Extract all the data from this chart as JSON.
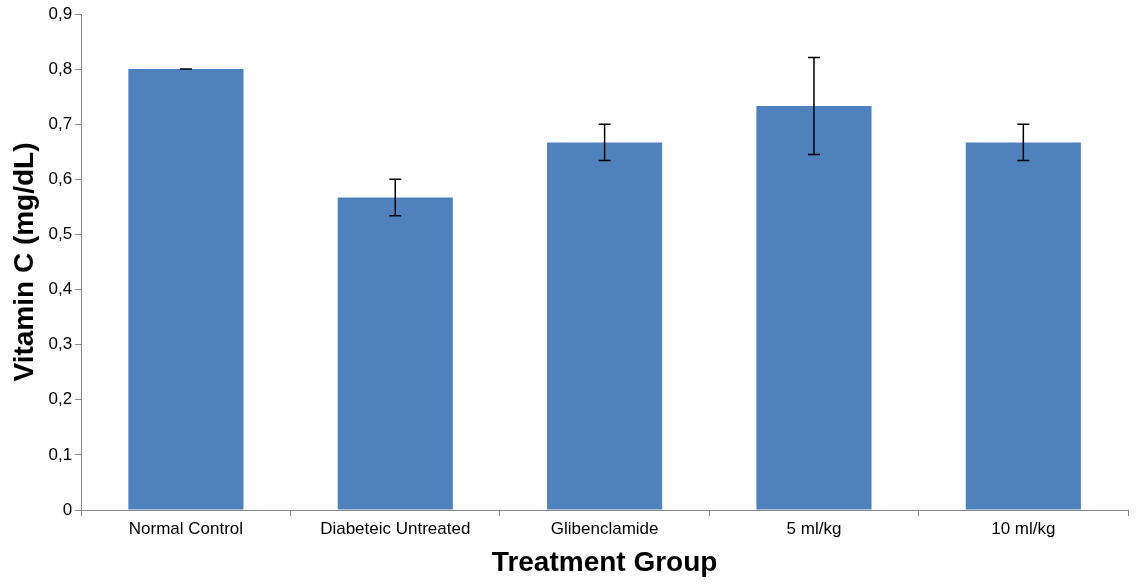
{
  "chart_data": {
    "type": "bar",
    "xlabel": "Treatment Group",
    "ylabel": "Vitamin C (mg/dL)",
    "categories": [
      "Normal Control",
      "Diabeteic Untreated",
      "Glibenclamide",
      "5 ml/kg",
      "10 ml/kg"
    ],
    "values": [
      0.8,
      0.567,
      0.667,
      0.733,
      0.667
    ],
    "errors": [
      0,
      0.033,
      0.033,
      0.088,
      0.033
    ],
    "color": "#4f81bd",
    "ylim": [
      0,
      0.9
    ],
    "yticks": [
      0,
      {
        "value": 0.1,
        "label": "0,1"
      },
      {
        "value": 0.2,
        "label": "0,2"
      },
      {
        "value": 0.3,
        "label": "0,3"
      },
      {
        "value": 0.4,
        "label": "0,4"
      },
      {
        "value": 0.5,
        "label": "0,5"
      },
      {
        "value": 0.6,
        "label": "0,6"
      },
      {
        "value": 0.7,
        "label": "0,7"
      },
      {
        "value": 0.8,
        "label": "0,8"
      },
      {
        "value": 0.9,
        "label": "0,9"
      }
    ],
    "grid": false,
    "legend": false
  }
}
